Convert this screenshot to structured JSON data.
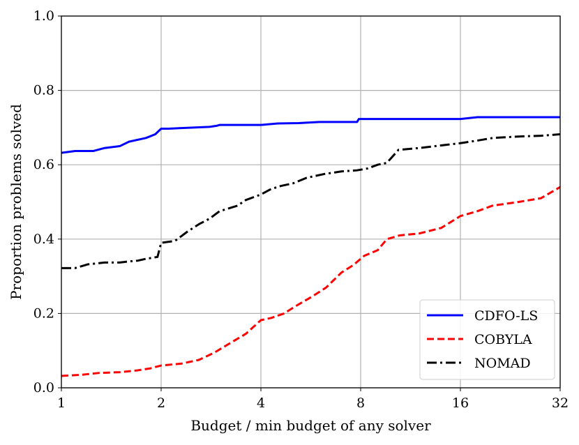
{
  "chart_data": {
    "type": "line",
    "title": "",
    "xlabel": "Budget / min budget of any solver",
    "ylabel": "Proportion problems solved",
    "xscale": "log2",
    "xlim": [
      1,
      32
    ],
    "ylim": [
      0.0,
      1.0
    ],
    "grid": true,
    "legend_position": "bottom-right",
    "xticks": [
      1,
      2,
      4,
      8,
      16,
      32
    ],
    "xtick_labels": [
      "1",
      "2",
      "4",
      "8",
      "16",
      "32"
    ],
    "yticks": [
      0.0,
      0.2,
      0.4,
      0.6,
      0.8,
      1.0
    ],
    "ytick_labels": [
      "0.0",
      "0.2",
      "0.4",
      "0.6",
      "0.8",
      "1.0"
    ],
    "series": [
      {
        "name": "CDFO-LS",
        "color": "#0000ff",
        "linestyle": "solid",
        "x": [
          1.0,
          1.1,
          1.25,
          1.35,
          1.5,
          1.6,
          1.8,
          1.92,
          2.0,
          2.1,
          2.8,
          2.95,
          3.0,
          4.0,
          4.5,
          5.2,
          6.0,
          7.8,
          7.9,
          16.0,
          18.0,
          32.0
        ],
        "y": [
          0.632,
          0.637,
          0.637,
          0.645,
          0.65,
          0.662,
          0.672,
          0.682,
          0.697,
          0.697,
          0.702,
          0.705,
          0.707,
          0.707,
          0.711,
          0.712,
          0.715,
          0.715,
          0.723,
          0.723,
          0.728,
          0.728
        ]
      },
      {
        "name": "COBYLA",
        "color": "#ff0000",
        "linestyle": "dashed",
        "x": [
          1.0,
          1.15,
          1.3,
          1.5,
          1.7,
          1.85,
          2.0,
          2.3,
          2.6,
          2.9,
          3.2,
          3.6,
          4.0,
          4.3,
          4.7,
          5.1,
          5.7,
          6.3,
          7.0,
          7.6,
          8.2,
          9.0,
          9.6,
          10.5,
          12.0,
          14.0,
          16.0,
          18.0,
          20.0,
          24.0,
          28.0,
          32.0
        ],
        "y": [
          0.032,
          0.035,
          0.04,
          0.042,
          0.047,
          0.052,
          0.06,
          0.065,
          0.075,
          0.095,
          0.118,
          0.145,
          0.182,
          0.188,
          0.2,
          0.22,
          0.245,
          0.27,
          0.31,
          0.33,
          0.355,
          0.37,
          0.4,
          0.41,
          0.415,
          0.43,
          0.462,
          0.475,
          0.49,
          0.5,
          0.51,
          0.54
        ]
      },
      {
        "name": "NOMAD",
        "color": "#000000",
        "linestyle": "dashdot",
        "x": [
          1.0,
          1.1,
          1.2,
          1.35,
          1.5,
          1.6,
          1.7,
          1.8,
          1.95,
          2.0,
          2.2,
          2.4,
          2.6,
          2.8,
          3.0,
          3.4,
          3.6,
          4.0,
          4.3,
          4.6,
          5.0,
          5.5,
          6.2,
          7.0,
          7.8,
          8.4,
          9.0,
          9.6,
          10.4,
          12.0,
          14.0,
          16.0,
          18.0,
          20.0,
          24.0,
          28.0,
          32.0
        ],
        "y": [
          0.322,
          0.322,
          0.332,
          0.337,
          0.337,
          0.34,
          0.342,
          0.347,
          0.352,
          0.39,
          0.395,
          0.42,
          0.44,
          0.455,
          0.475,
          0.49,
          0.505,
          0.52,
          0.535,
          0.543,
          0.55,
          0.565,
          0.575,
          0.582,
          0.585,
          0.59,
          0.6,
          0.605,
          0.64,
          0.645,
          0.652,
          0.658,
          0.665,
          0.672,
          0.676,
          0.678,
          0.682
        ]
      }
    ]
  }
}
